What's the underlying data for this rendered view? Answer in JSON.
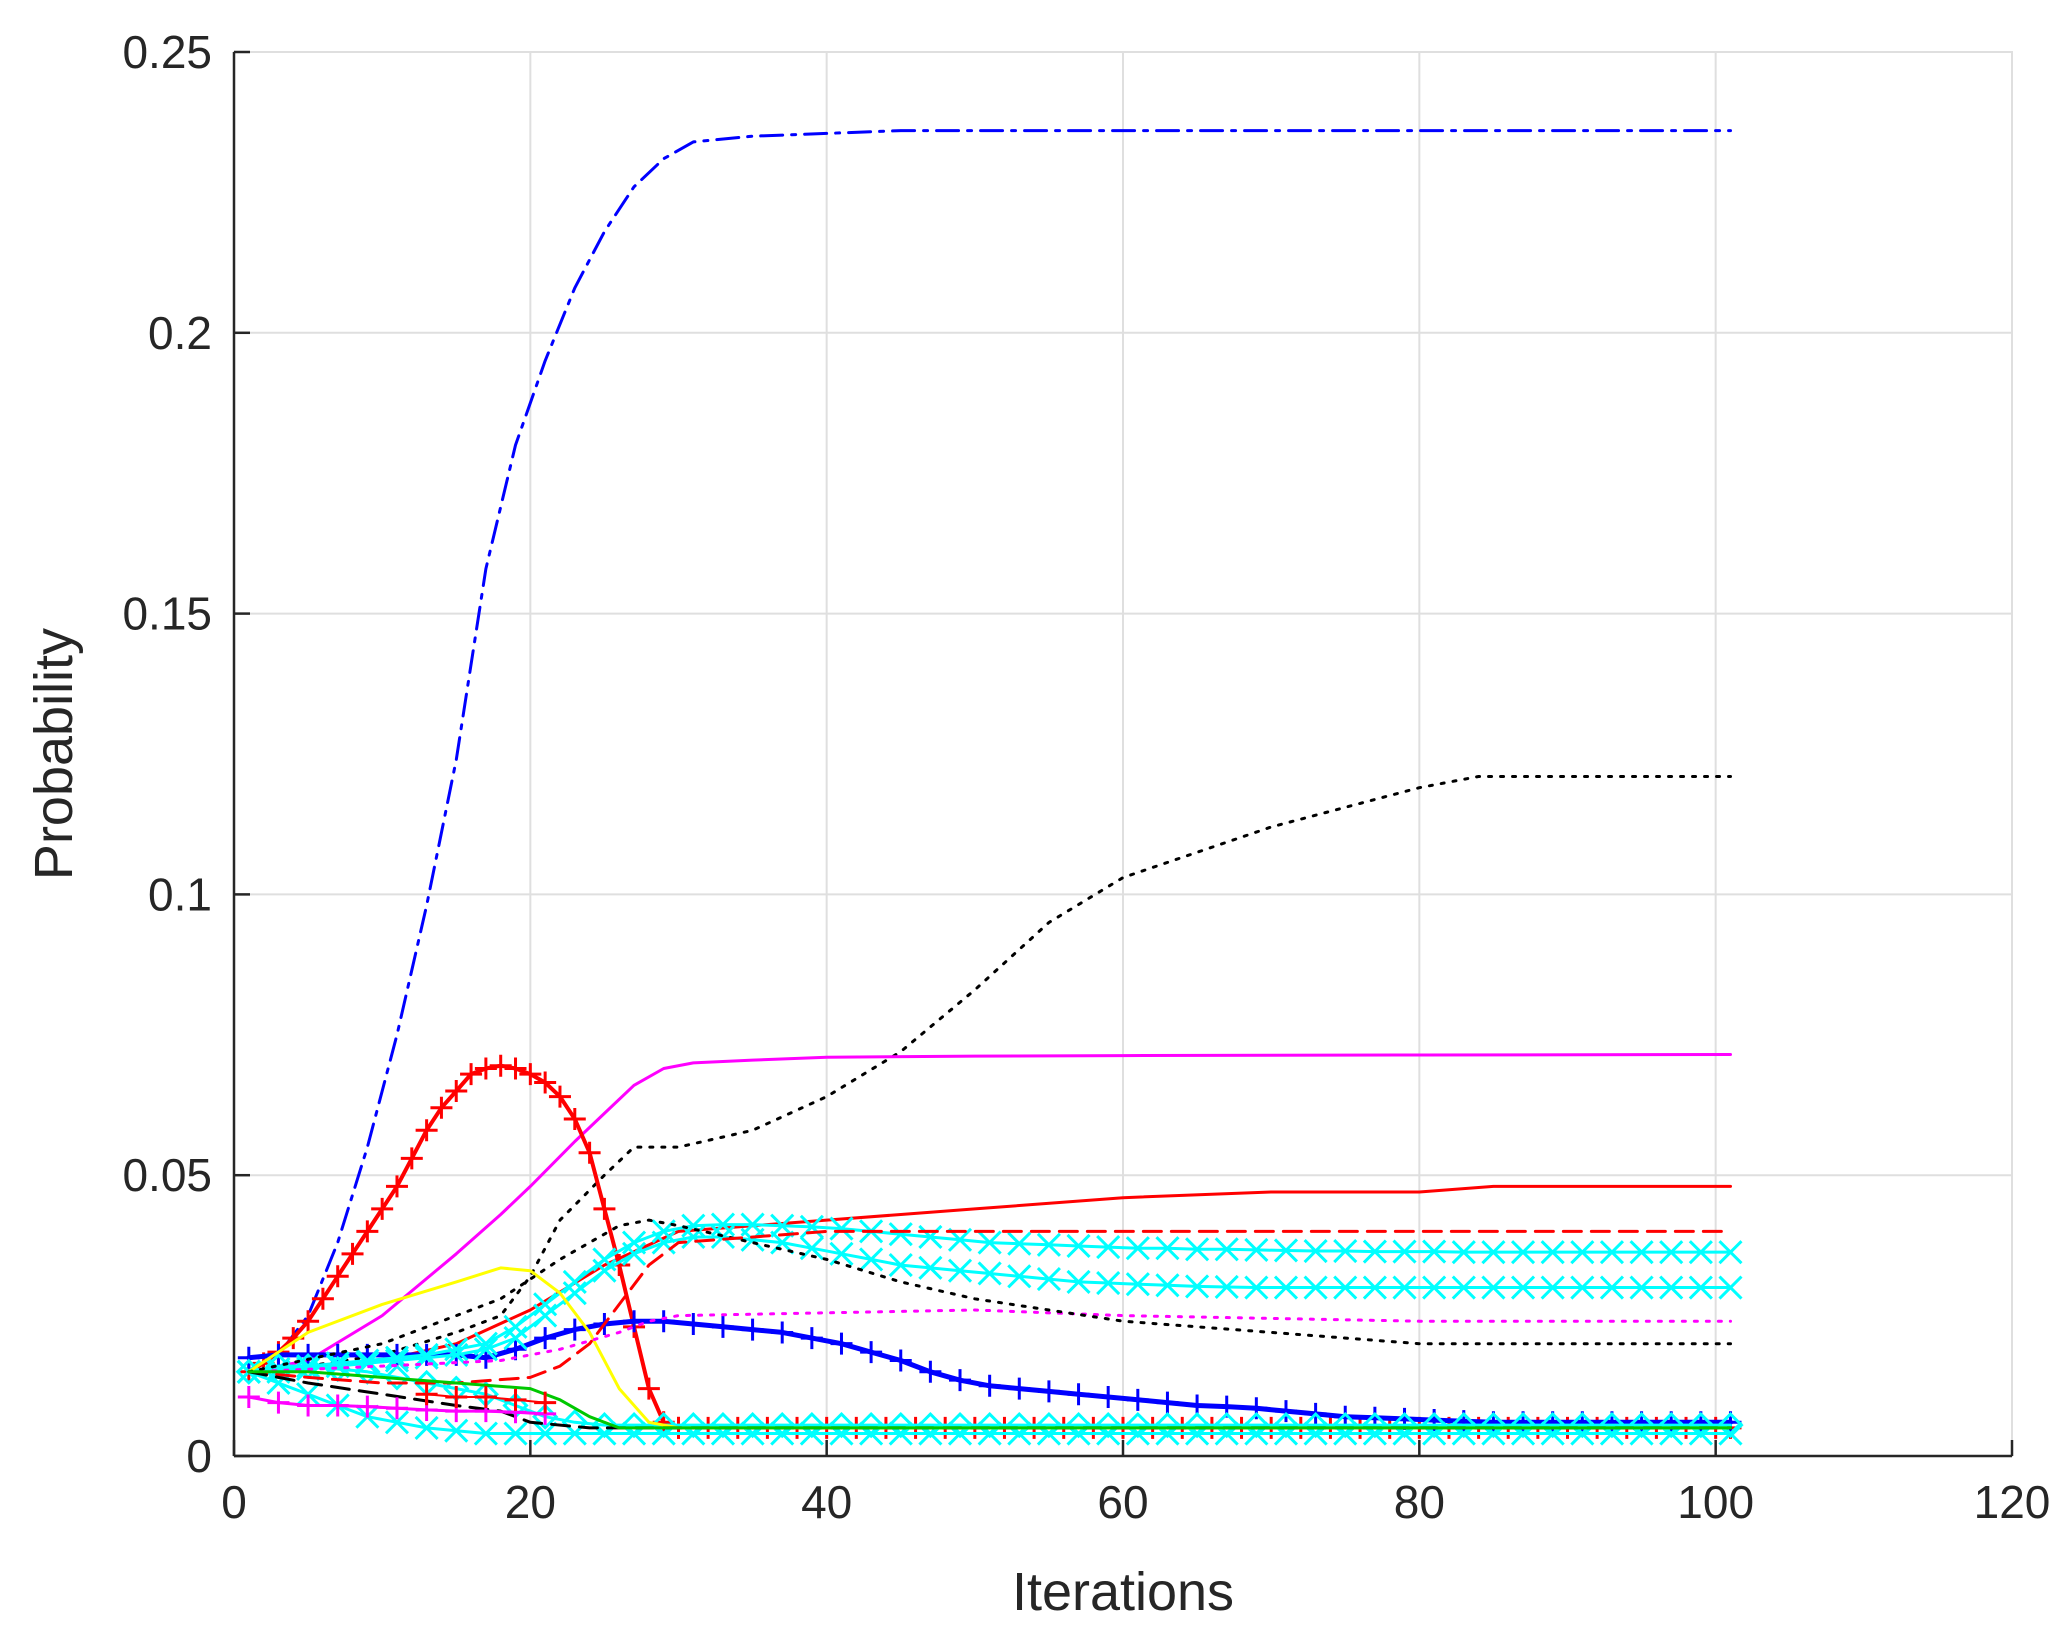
{
  "chart_data": {
    "type": "line",
    "title": "",
    "xlabel": "Iterations",
    "ylabel": "Probability",
    "xlim": [
      0,
      120
    ],
    "ylim": [
      0,
      0.25
    ],
    "xticks": [
      0,
      20,
      40,
      60,
      80,
      100,
      120
    ],
    "yticks": [
      0,
      0.05,
      0.1,
      0.15,
      0.2,
      0.25
    ],
    "xtick_labels": [
      "0",
      "20",
      "40",
      "60",
      "80",
      "100",
      "120"
    ],
    "ytick_labels": [
      "0",
      "0.05",
      "0.1",
      "0.15",
      "0.2",
      "0.25"
    ],
    "grid": true,
    "legend": "none",
    "colors": {
      "blue": "#0000ff",
      "red": "#ff0000",
      "black": "#000000",
      "magenta": "#ff00ff",
      "cyan": "#00ffff",
      "yellow": "#ffff00",
      "green": "#00c800"
    },
    "series": [
      {
        "color": "blue",
        "style": "dashdot",
        "marker": "none",
        "width": 3,
        "x": [
          1,
          3,
          5,
          7,
          9,
          11,
          13,
          15,
          17,
          19,
          21,
          23,
          25,
          27,
          29,
          31,
          35,
          40,
          45,
          50,
          60,
          70,
          80,
          90,
          101
        ],
        "y": [
          0.015,
          0.018,
          0.025,
          0.038,
          0.055,
          0.075,
          0.098,
          0.124,
          0.158,
          0.18,
          0.195,
          0.208,
          0.218,
          0.226,
          0.231,
          0.234,
          0.235,
          0.2355,
          0.236,
          0.236,
          0.236,
          0.236,
          0.236,
          0.236,
          0.236
        ]
      },
      {
        "color": "black",
        "style": "dotted",
        "marker": "none",
        "width": 3,
        "x": [
          1,
          5,
          10,
          15,
          18,
          20,
          22,
          25,
          27,
          30,
          35,
          40,
          45,
          50,
          55,
          60,
          70,
          80,
          84,
          90,
          101
        ],
        "y": [
          0.015,
          0.016,
          0.018,
          0.022,
          0.025,
          0.032,
          0.042,
          0.05,
          0.055,
          0.055,
          0.058,
          0.064,
          0.072,
          0.083,
          0.095,
          0.103,
          0.112,
          0.119,
          0.121,
          0.121,
          0.121
        ]
      },
      {
        "color": "magenta",
        "style": "solid",
        "marker": "none",
        "width": 3,
        "x": [
          1,
          5,
          10,
          15,
          18,
          20,
          23,
          25,
          27,
          29,
          31,
          35,
          40,
          50,
          60,
          80,
          101
        ],
        "y": [
          0.015,
          0.017,
          0.025,
          0.036,
          0.043,
          0.048,
          0.056,
          0.061,
          0.066,
          0.069,
          0.07,
          0.0705,
          0.071,
          0.0712,
          0.0713,
          0.0714,
          0.0715
        ]
      },
      {
        "color": "red",
        "style": "solid",
        "marker": "none",
        "width": 3,
        "x": [
          1,
          5,
          10,
          15,
          20,
          25,
          30,
          35,
          40,
          45,
          50,
          60,
          70,
          80,
          85,
          101
        ],
        "y": [
          0.015,
          0.016,
          0.017,
          0.02,
          0.026,
          0.034,
          0.04,
          0.041,
          0.042,
          0.043,
          0.044,
          0.046,
          0.047,
          0.047,
          0.048,
          0.048
        ]
      },
      {
        "color": "red",
        "style": "solid",
        "marker": "plus",
        "width": 4,
        "markerEvery": 1,
        "x": [
          1,
          2,
          3,
          4,
          5,
          6,
          7,
          8,
          9,
          10,
          11,
          12,
          13,
          14,
          15,
          16,
          17,
          18,
          19,
          20,
          21,
          22,
          23,
          24,
          25,
          26,
          27,
          28,
          29,
          30
        ],
        "y": [
          0.015,
          0.0165,
          0.0185,
          0.021,
          0.024,
          0.028,
          0.032,
          0.036,
          0.04,
          0.044,
          0.048,
          0.053,
          0.058,
          0.062,
          0.065,
          0.068,
          0.069,
          0.0695,
          0.069,
          0.068,
          0.0665,
          0.064,
          0.06,
          0.054,
          0.044,
          0.034,
          0.023,
          0.012,
          0.006,
          0.005
        ]
      },
      {
        "color": "red",
        "style": "solid",
        "marker": "plus",
        "width": 3,
        "markerEvery": 1,
        "x": [
          30,
          32,
          34,
          36,
          38,
          40,
          42,
          44,
          46,
          48,
          50,
          52,
          54,
          56,
          58,
          60,
          62,
          64,
          66,
          68,
          70,
          72,
          74,
          76,
          78,
          80,
          82,
          84,
          86,
          88,
          90,
          92,
          94,
          96,
          98,
          100,
          101
        ],
        "y": [
          0.005,
          0.005,
          0.005,
          0.005,
          0.005,
          0.005,
          0.005,
          0.005,
          0.005,
          0.005,
          0.005,
          0.005,
          0.005,
          0.005,
          0.005,
          0.005,
          0.005,
          0.005,
          0.005,
          0.005,
          0.005,
          0.005,
          0.005,
          0.005,
          0.005,
          0.005,
          0.005,
          0.005,
          0.005,
          0.005,
          0.005,
          0.005,
          0.005,
          0.005,
          0.005,
          0.005,
          0.005
        ]
      },
      {
        "color": "blue",
        "style": "solid",
        "marker": "plus",
        "width": 5,
        "markerEvery": 1,
        "x": [
          1,
          3,
          5,
          7,
          9,
          11,
          13,
          15,
          17,
          19,
          21,
          23,
          25,
          27,
          29,
          31,
          33,
          35,
          37,
          39,
          41,
          43,
          45,
          47,
          49,
          51,
          53,
          55,
          57,
          59,
          61,
          63,
          65,
          67,
          69,
          71,
          73,
          75,
          77,
          79,
          81,
          83,
          85,
          87,
          89,
          91,
          93,
          95,
          97,
          99,
          101
        ],
        "y": [
          0.0175,
          0.018,
          0.018,
          0.018,
          0.018,
          0.018,
          0.018,
          0.018,
          0.0175,
          0.019,
          0.021,
          0.0225,
          0.0235,
          0.024,
          0.024,
          0.0235,
          0.023,
          0.0225,
          0.022,
          0.021,
          0.02,
          0.0185,
          0.017,
          0.015,
          0.0135,
          0.0125,
          0.012,
          0.0115,
          0.011,
          0.0105,
          0.01,
          0.0095,
          0.009,
          0.0088,
          0.0085,
          0.008,
          0.0075,
          0.007,
          0.0068,
          0.0066,
          0.0064,
          0.0062,
          0.006,
          0.006,
          0.006,
          0.006,
          0.006,
          0.006,
          0.006,
          0.006,
          0.006
        ]
      },
      {
        "color": "cyan",
        "style": "solid",
        "marker": "x",
        "width": 3,
        "markerEvery": 1,
        "x": [
          1,
          3,
          5,
          7,
          9,
          11,
          13,
          15,
          17,
          19,
          21,
          23,
          25,
          27,
          29,
          31,
          33,
          35,
          37,
          39,
          41,
          43,
          45,
          47,
          49,
          51,
          53,
          55,
          57,
          59,
          61,
          63,
          65,
          67,
          69,
          71,
          73,
          75,
          77,
          79,
          81,
          83,
          85,
          87,
          89,
          91,
          93,
          95,
          97,
          99,
          101
        ],
        "y": [
          0.015,
          0.0155,
          0.016,
          0.0165,
          0.017,
          0.0175,
          0.018,
          0.019,
          0.02,
          0.023,
          0.027,
          0.031,
          0.035,
          0.038,
          0.04,
          0.041,
          0.0412,
          0.0412,
          0.041,
          0.0408,
          0.0405,
          0.04,
          0.0395,
          0.039,
          0.0385,
          0.038,
          0.0378,
          0.0376,
          0.0374,
          0.0372,
          0.037,
          0.037,
          0.0368,
          0.0368,
          0.0367,
          0.0366,
          0.0365,
          0.0365,
          0.0364,
          0.0364,
          0.0364,
          0.0363,
          0.0363,
          0.0363,
          0.0363,
          0.0363,
          0.0363,
          0.0363,
          0.0363,
          0.0363,
          0.0363
        ]
      },
      {
        "color": "cyan",
        "style": "solid",
        "marker": "x",
        "width": 3,
        "markerEvery": 1,
        "x": [
          1,
          3,
          5,
          7,
          9,
          11,
          13,
          15,
          17,
          19,
          21,
          23,
          25,
          27,
          29,
          31,
          33,
          35,
          37,
          39,
          41,
          43,
          45,
          47,
          49,
          51,
          53,
          55,
          57,
          59,
          61,
          63,
          65,
          67,
          69,
          71,
          73,
          75,
          77,
          79,
          81,
          83,
          85,
          87,
          89,
          91,
          93,
          95,
          97,
          99,
          101
        ],
        "y": [
          0.015,
          0.015,
          0.0155,
          0.016,
          0.0165,
          0.017,
          0.0175,
          0.018,
          0.019,
          0.021,
          0.025,
          0.029,
          0.033,
          0.036,
          0.038,
          0.039,
          0.039,
          0.0385,
          0.038,
          0.037,
          0.036,
          0.035,
          0.034,
          0.0335,
          0.033,
          0.0325,
          0.032,
          0.0315,
          0.031,
          0.0308,
          0.0306,
          0.0304,
          0.0302,
          0.0301,
          0.03,
          0.03,
          0.03,
          0.03,
          0.03,
          0.03,
          0.03,
          0.03,
          0.03,
          0.03,
          0.03,
          0.03,
          0.03,
          0.03,
          0.03,
          0.03,
          0.03
        ]
      },
      {
        "color": "cyan",
        "style": "solid",
        "marker": "x",
        "width": 3,
        "markerEvery": 1,
        "x": [
          1,
          3,
          5,
          7,
          9,
          11,
          13,
          15,
          17,
          19,
          21,
          23,
          25,
          27,
          29,
          31,
          33,
          35,
          37,
          39,
          41,
          43,
          45,
          47,
          49,
          51,
          53,
          55,
          57,
          59,
          61,
          63,
          65,
          67,
          69,
          71,
          73,
          75,
          77,
          79,
          81,
          83,
          85,
          87,
          89,
          91,
          93,
          95,
          97,
          99,
          101
        ],
        "y": [
          0.015,
          0.013,
          0.011,
          0.009,
          0.007,
          0.006,
          0.005,
          0.0045,
          0.004,
          0.004,
          0.004,
          0.004,
          0.004,
          0.004,
          0.004,
          0.004,
          0.004,
          0.004,
          0.004,
          0.004,
          0.004,
          0.004,
          0.004,
          0.004,
          0.004,
          0.004,
          0.004,
          0.004,
          0.004,
          0.004,
          0.004,
          0.004,
          0.004,
          0.004,
          0.004,
          0.004,
          0.004,
          0.004,
          0.004,
          0.004,
          0.004,
          0.004,
          0.004,
          0.004,
          0.004,
          0.004,
          0.004,
          0.004,
          0.004,
          0.004,
          0.004
        ]
      },
      {
        "color": "cyan",
        "style": "solid",
        "marker": "diamond",
        "width": 3,
        "markerEvery": 1,
        "x": [
          1,
          3,
          5,
          7,
          9,
          11,
          13,
          15,
          17,
          19,
          21,
          23,
          25,
          27,
          29,
          31,
          33,
          35,
          37,
          39,
          41,
          43,
          45,
          47,
          49,
          51,
          53,
          55,
          57,
          59,
          61,
          63,
          65,
          67,
          69,
          71,
          73,
          75,
          77,
          79,
          81,
          83,
          85,
          87,
          89,
          91,
          93,
          95,
          97,
          99,
          101
        ],
        "y": [
          0.015,
          0.016,
          0.016,
          0.0155,
          0.015,
          0.014,
          0.013,
          0.012,
          0.011,
          0.009,
          0.007,
          0.006,
          0.0055,
          0.0055,
          0.0055,
          0.0055,
          0.0055,
          0.0055,
          0.0055,
          0.0055,
          0.0055,
          0.0055,
          0.0055,
          0.0055,
          0.0055,
          0.0055,
          0.0055,
          0.0055,
          0.0055,
          0.0055,
          0.0055,
          0.0055,
          0.0055,
          0.0055,
          0.0055,
          0.0055,
          0.0055,
          0.0055,
          0.0055,
          0.0055,
          0.0055,
          0.0055,
          0.0055,
          0.0055,
          0.0055,
          0.0055,
          0.0055,
          0.0055,
          0.0055,
          0.0055,
          0.0055
        ]
      },
      {
        "color": "yellow",
        "style": "solid",
        "marker": "none",
        "width": 3,
        "x": [
          1,
          5,
          10,
          15,
          18,
          20,
          22,
          24,
          26,
          28,
          30,
          40,
          101
        ],
        "y": [
          0.015,
          0.022,
          0.027,
          0.031,
          0.0335,
          0.033,
          0.029,
          0.022,
          0.012,
          0.006,
          0.005,
          0.005,
          0.005
        ]
      },
      {
        "color": "magenta",
        "style": "dotted",
        "marker": "none",
        "width": 3,
        "x": [
          1,
          10,
          18,
          22,
          26,
          28,
          30,
          40,
          50,
          60,
          80,
          101
        ],
        "y": [
          0.015,
          0.016,
          0.017,
          0.019,
          0.022,
          0.024,
          0.025,
          0.0255,
          0.026,
          0.025,
          0.024,
          0.024
        ]
      },
      {
        "color": "black",
        "style": "dotted",
        "marker": "none",
        "width": 3,
        "x": [
          1,
          10,
          18,
          22,
          26,
          28,
          30,
          35,
          40,
          45,
          50,
          55,
          60,
          70,
          80,
          90,
          101
        ],
        "y": [
          0.015,
          0.02,
          0.028,
          0.035,
          0.041,
          0.042,
          0.041,
          0.038,
          0.035,
          0.031,
          0.028,
          0.026,
          0.024,
          0.022,
          0.02,
          0.02,
          0.02
        ]
      },
      {
        "color": "red",
        "style": "dashed",
        "marker": "none",
        "width": 3,
        "x": [
          1,
          5,
          10,
          15,
          20,
          22,
          24,
          26,
          28,
          30,
          40,
          101
        ],
        "y": [
          0.015,
          0.014,
          0.013,
          0.013,
          0.014,
          0.016,
          0.02,
          0.027,
          0.034,
          0.038,
          0.04,
          0.04
        ]
      },
      {
        "color": "black",
        "style": "dashed",
        "marker": "none",
        "width": 3,
        "x": [
          1,
          5,
          10,
          15,
          18,
          20,
          24,
          28,
          30,
          101
        ],
        "y": [
          0.015,
          0.013,
          0.011,
          0.009,
          0.008,
          0.006,
          0.005,
          0.005,
          0.005,
          0.005
        ]
      },
      {
        "color": "green",
        "style": "solid",
        "marker": "none",
        "width": 3,
        "x": [
          1,
          5,
          10,
          15,
          20,
          22,
          24,
          26,
          30,
          101
        ],
        "y": [
          0.015,
          0.015,
          0.014,
          0.013,
          0.012,
          0.01,
          0.007,
          0.005,
          0.005,
          0.005
        ]
      },
      {
        "color": "magenta",
        "style": "solid",
        "marker": "plus",
        "width": 3,
        "markerEvery": 1,
        "x": [
          1,
          3,
          5,
          7,
          9,
          11,
          13,
          15,
          17,
          19,
          21
        ],
        "y": [
          0.0105,
          0.0095,
          0.009,
          0.009,
          0.0088,
          0.0085,
          0.0082,
          0.008,
          0.008,
          0.0078,
          0.0075
        ]
      },
      {
        "color": "red",
        "style": "solid",
        "marker": "plus",
        "width": 2,
        "markerEvery": 1,
        "x": [
          13,
          15,
          17,
          19,
          21
        ],
        "y": [
          0.011,
          0.0105,
          0.0105,
          0.01,
          0.0095
        ]
      }
    ]
  }
}
